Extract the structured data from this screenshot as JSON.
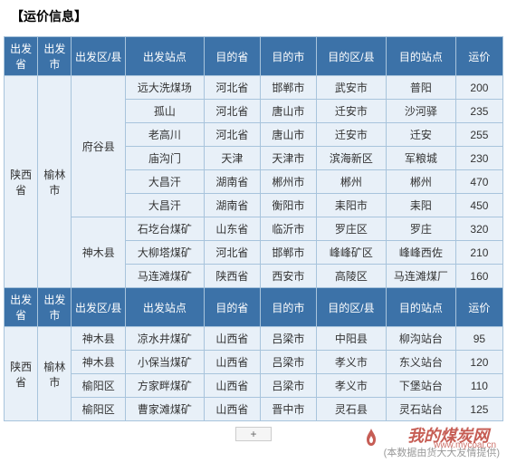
{
  "title": "【运价信息】",
  "headers": {
    "from_prov": "出发省",
    "from_city": "出发市",
    "from_county": "出发区/县",
    "from_station": "出发站点",
    "to_prov": "目的省",
    "to_city": "目的市",
    "to_county": "目的区/县",
    "to_station": "目的站点",
    "price": "运价"
  },
  "group1_from_prov": "陕西省",
  "group1_from_city": "榆林市",
  "group1_county1": "府谷县",
  "group1_county2": "神木县",
  "group1_rows": [
    {
      "station": "远大洗煤场",
      "to_prov": "河北省",
      "to_city": "邯郸市",
      "to_county": "武安市",
      "to_station": "普阳",
      "price": "200"
    },
    {
      "station": "孤山",
      "to_prov": "河北省",
      "to_city": "唐山市",
      "to_county": "迁安市",
      "to_station": "沙河驿",
      "price": "235"
    },
    {
      "station": "老高川",
      "to_prov": "河北省",
      "to_city": "唐山市",
      "to_county": "迁安市",
      "to_station": "迁安",
      "price": "255"
    },
    {
      "station": "庙沟门",
      "to_prov": "天津",
      "to_city": "天津市",
      "to_county": "滨海新区",
      "to_station": "军粮城",
      "price": "230"
    },
    {
      "station": "大昌汗",
      "to_prov": "湖南省",
      "to_city": "郴州市",
      "to_county": "郴州",
      "to_station": "郴州",
      "price": "470"
    },
    {
      "station": "大昌汗",
      "to_prov": "湖南省",
      "to_city": "衡阳市",
      "to_county": "耒阳市",
      "to_station": "耒阳",
      "price": "450"
    },
    {
      "station": "石圪台煤矿",
      "to_prov": "山东省",
      "to_city": "临沂市",
      "to_county": "罗庄区",
      "to_station": "罗庄",
      "price": "320"
    },
    {
      "station": "大柳塔煤矿",
      "to_prov": "河北省",
      "to_city": "邯郸市",
      "to_county": "峰峰矿区",
      "to_station": "峰峰西佐",
      "price": "210"
    },
    {
      "station": "马连滩煤矿",
      "to_prov": "陕西省",
      "to_city": "西安市",
      "to_county": "高陵区",
      "to_station": "马连滩煤厂",
      "price": "160"
    }
  ],
  "group2_from_prov": "陕西省",
  "group2_from_city": "榆林市",
  "group2_rows": [
    {
      "county": "神木县",
      "station": "凉水井煤矿",
      "to_prov": "山西省",
      "to_city": "吕梁市",
      "to_county": "中阳县",
      "to_station": "柳沟站台",
      "price": "95"
    },
    {
      "county": "神木县",
      "station": "小保当煤矿",
      "to_prov": "山西省",
      "to_city": "吕梁市",
      "to_county": "孝义市",
      "to_station": "东义站台",
      "price": "120"
    },
    {
      "county": "榆阳区",
      "station": "方家畔煤矿",
      "to_prov": "山西省",
      "to_city": "吕梁市",
      "to_county": "孝义市",
      "to_station": "下堡站台",
      "price": "110"
    },
    {
      "county": "榆阳区",
      "station": "曹家滩煤矿",
      "to_prov": "山西省",
      "to_city": "晋中市",
      "to_county": "灵石县",
      "to_station": "灵石站台",
      "price": "125"
    }
  ],
  "plus_label": "+",
  "note": "(本数据由货大大友情提供)",
  "watermark": "我的煤炭网",
  "url": "www.mycoal.cn",
  "colors": {
    "header_bg": "#3c72a8",
    "header_text": "#ffffff",
    "cell_bg": "#e8f0f8",
    "border": "#a8c4dc",
    "watermark": "#b8352a"
  }
}
